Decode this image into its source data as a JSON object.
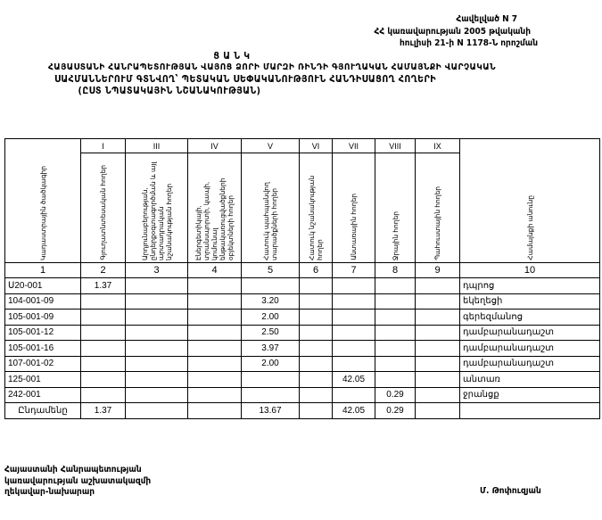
{
  "annex": {
    "line1": "Հավելված N 7",
    "line2": "ՀՀ կառավարության 2005 թվականի",
    "line3": "հուլիսի 21-ի N 1178-Ն որոշման"
  },
  "title": {
    "heading": "Ց Ա Ն Կ",
    "line1": "ՀԱՅԱՍՏԱՆԻ ՀԱՆՐԱՊԵՏՈՒԹՅԱՆ ՎԱՅՈՑ ՁՈՐԻ ՄԱՐԶԻ ՌԻՆԴԻ ԳՅՈՒՂԱԿԱՆ ՀԱՄԱՅՆՔԻ ՎԱՐՉԱԿԱՆ",
    "line2": "ՍԱՀՄԱՆՆԵՐՈՒՄ ԳՏՆՎՈՂ՝ ՊԵՏԱԿԱՆ ՍԵՓԱԿԱՆՈՒԹՅՈՒՆ ՀԱՆԴԻՍԱՑՈՂ ՀՈՂԵՐԻ",
    "line3": "(ԸՍՏ ՆՊԱՏԱԿԱՅԻՆ ՆՇԱՆԱԿՈՒԹՅԱՆ)"
  },
  "table": {
    "roman": [
      "I",
      "III",
      "IV",
      "V",
      "VI",
      "VII",
      "VIII",
      "IX"
    ],
    "headers": [
      "Կադաստրային ծածկագիր",
      "Գյուղատնտեսական հողեր",
      "Արդյունաբերության, ընդերքօգտագործման և այլ արտադրական նշանակության հողեր",
      "Էներգետիկայի, տրանսպորտի, կապի, կոմունալ ենթակառուցվածքների օբյեկտների հողեր",
      "Հատուկ պահպանվող տարածքների հողեր",
      "Հատուկ նշանակության հողեր",
      "Անտառային հողեր",
      "Ջրային հողեր",
      "Պահուստային հողեր",
      "Համայնքի անունը"
    ],
    "col_numbers": [
      "1",
      "2",
      "3",
      "4",
      "5",
      "6",
      "7",
      "8",
      "9",
      "10"
    ],
    "rows": [
      [
        "Ս20-001",
        "1.37",
        "",
        "",
        "",
        "",
        "",
        "",
        "",
        "դպրոց"
      ],
      [
        "104-001-09",
        "",
        "",
        "",
        "3.20",
        "",
        "",
        "",
        "",
        "եկեղեցի"
      ],
      [
        "105-001-09",
        "",
        "",
        "",
        "2.00",
        "",
        "",
        "",
        "",
        "գերեզմանոց"
      ],
      [
        "105-001-12",
        "",
        "",
        "",
        "2.50",
        "",
        "",
        "",
        "",
        "դամբարանադաշտ"
      ],
      [
        "105-001-16",
        "",
        "",
        "",
        "3.97",
        "",
        "",
        "",
        "",
        "դամբարանադաշտ"
      ],
      [
        "107-001-02",
        "",
        "",
        "",
        "2.00",
        "",
        "",
        "",
        "",
        "դամբարանադաշտ"
      ],
      [
        "125-001",
        "",
        "",
        "",
        "",
        "",
        "42.05",
        "",
        "",
        "անտառ"
      ],
      [
        "242-001",
        "",
        "",
        "",
        "",
        "",
        "",
        "0.29",
        "",
        "ջրանցք"
      ]
    ],
    "total": [
      "Ընդամենը",
      "1.37",
      "",
      "",
      "13.67",
      "",
      "42.05",
      "0.29",
      "",
      ""
    ]
  },
  "footer": {
    "line1": "Հայաստանի Հանրապետության",
    "line2": "կառավարության աշխատակազմի",
    "line3": "ղեկավար-նախարար",
    "signature": "Մ. Թոփուզյան"
  }
}
